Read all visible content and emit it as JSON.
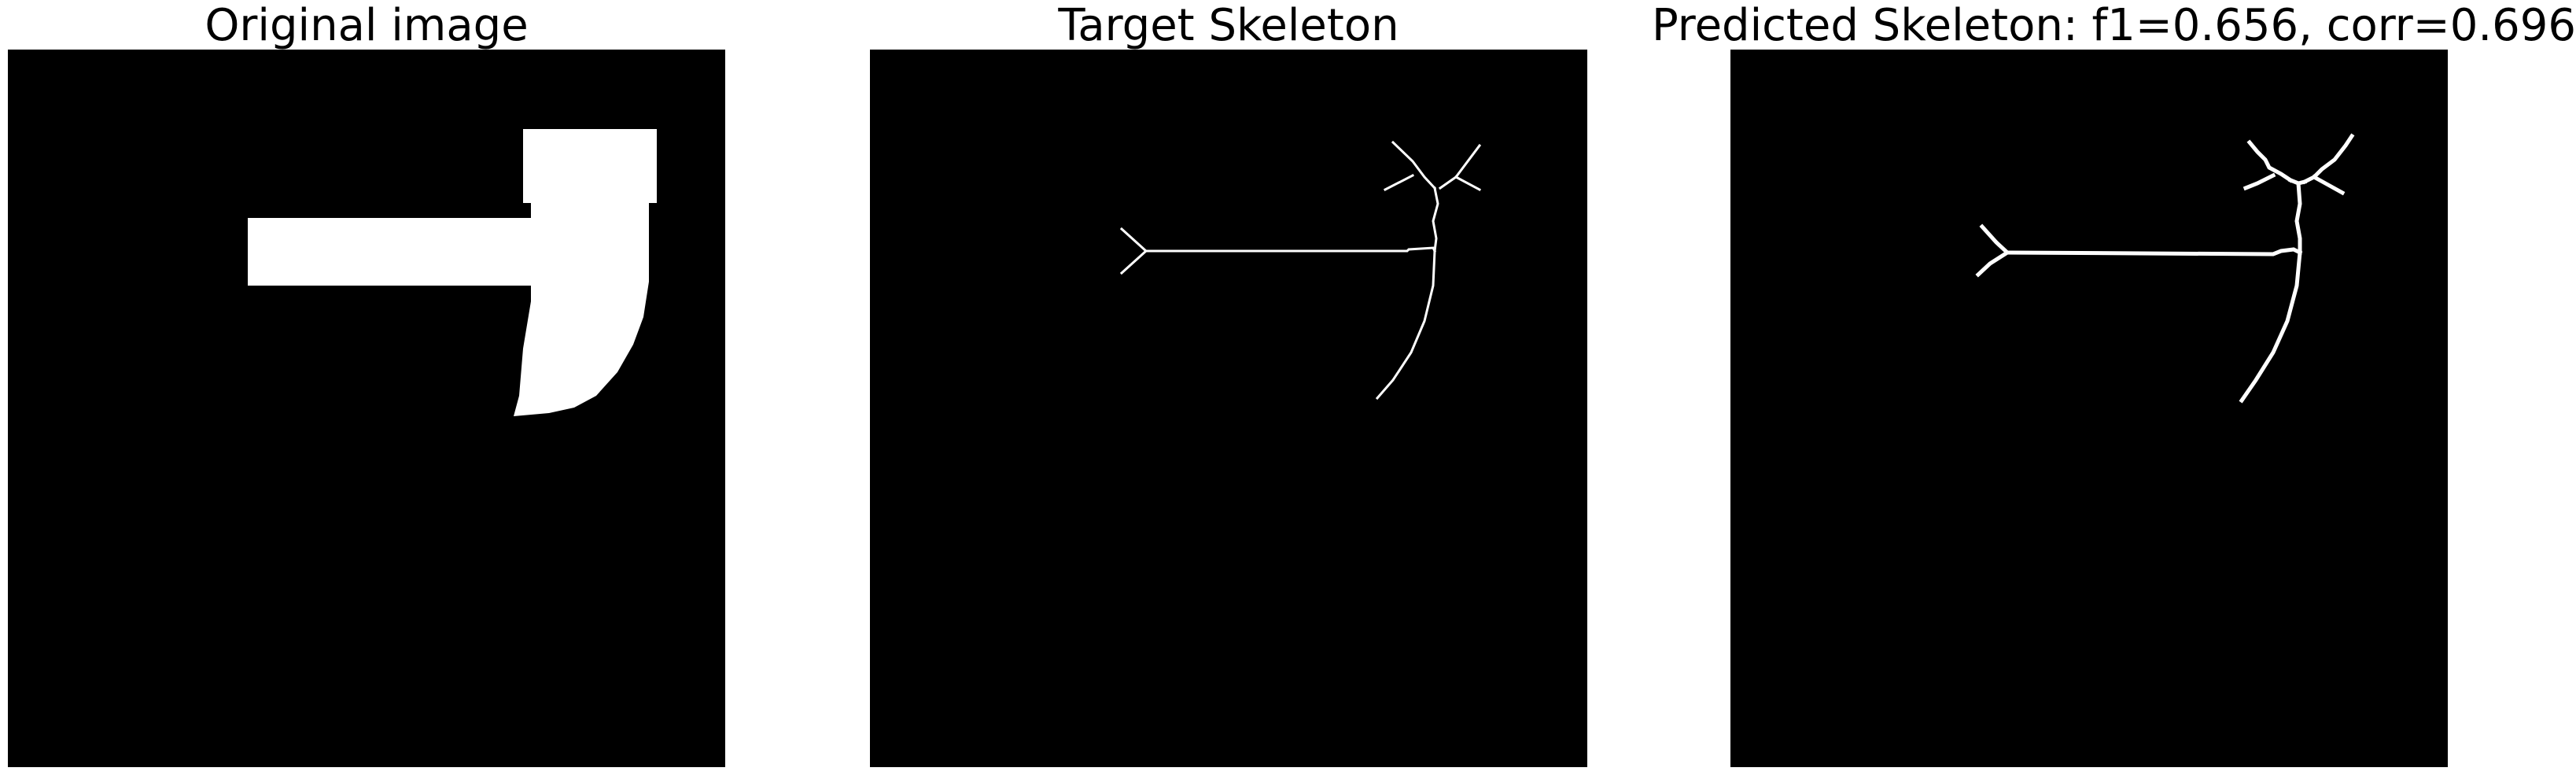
{
  "figure": {
    "background_color": "#ffffff",
    "image_background_color": "#000000",
    "foreground_color": "#ffffff",
    "panels": [
      {
        "title": "Original image"
      },
      {
        "title": "Target Skeleton"
      },
      {
        "title": "Predicted Skeleton: f1=0.656, corr=0.696"
      }
    ]
  }
}
